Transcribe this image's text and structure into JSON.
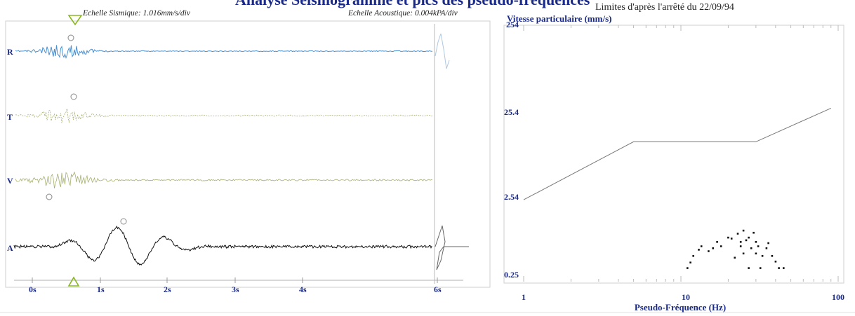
{
  "header": {
    "title": "Analyse Seismogramme et pics des pseudo-fréquences",
    "seismic_scale": "Echelle Sismique: 1.016mm/s/div",
    "acoustic_scale": "Echelle Acoustique: 0.004kPA/div",
    "limits_caption": "Limites d'après l'arrêté du 22/09/94"
  },
  "colors": {
    "radial": "#4a90d0",
    "transverse": "#a8b070",
    "vertical": "#a8b070",
    "acoustic": "#111111",
    "label_blue": "#1a2a8a",
    "marker_green": "#8ab820"
  },
  "chart_data": [
    {
      "type": "line",
      "name": "seismogram",
      "channels": [
        "R",
        "T",
        "V",
        "A"
      ],
      "x_ticks": [
        "0s",
        "1s",
        "2s",
        "3s",
        "4s",
        "6s"
      ],
      "trigger_marker": "triangle",
      "peak_markers": "circle"
    },
    {
      "type": "scatter",
      "log_x": true,
      "log_y": true,
      "ylabel": "Vitesse particulaire (mm/s)",
      "xlabel": "Pseudo-Fréquence (Hz)",
      "y_ticks": [
        "254",
        "25.4",
        "2.54",
        "0.25"
      ],
      "x_ticks": [
        "1",
        "10",
        "100"
      ],
      "xlim": [
        1,
        100
      ],
      "ylim": [
        0.25,
        254
      ],
      "limit_line": {
        "x": [
          1,
          5,
          30,
          90
        ],
        "y": [
          2.0,
          10.0,
          10.0,
          25.4
        ]
      },
      "points": {
        "x": [
          11,
          11.5,
          12,
          13,
          13.5,
          15,
          16,
          17,
          18,
          20,
          21,
          22,
          23,
          24,
          24,
          25,
          25,
          26,
          27,
          27,
          28,
          29,
          30,
          30,
          31,
          32,
          33,
          35,
          36,
          38,
          40,
          42,
          45
        ],
        "y": [
          0.3,
          0.35,
          0.42,
          0.5,
          0.55,
          0.48,
          0.52,
          0.62,
          0.55,
          0.7,
          0.68,
          0.4,
          0.78,
          0.55,
          0.62,
          0.85,
          0.45,
          0.65,
          0.7,
          0.3,
          0.52,
          0.8,
          0.45,
          0.62,
          0.55,
          0.3,
          0.42,
          0.52,
          0.6,
          0.42,
          0.36,
          0.3,
          0.3
        ]
      }
    }
  ]
}
